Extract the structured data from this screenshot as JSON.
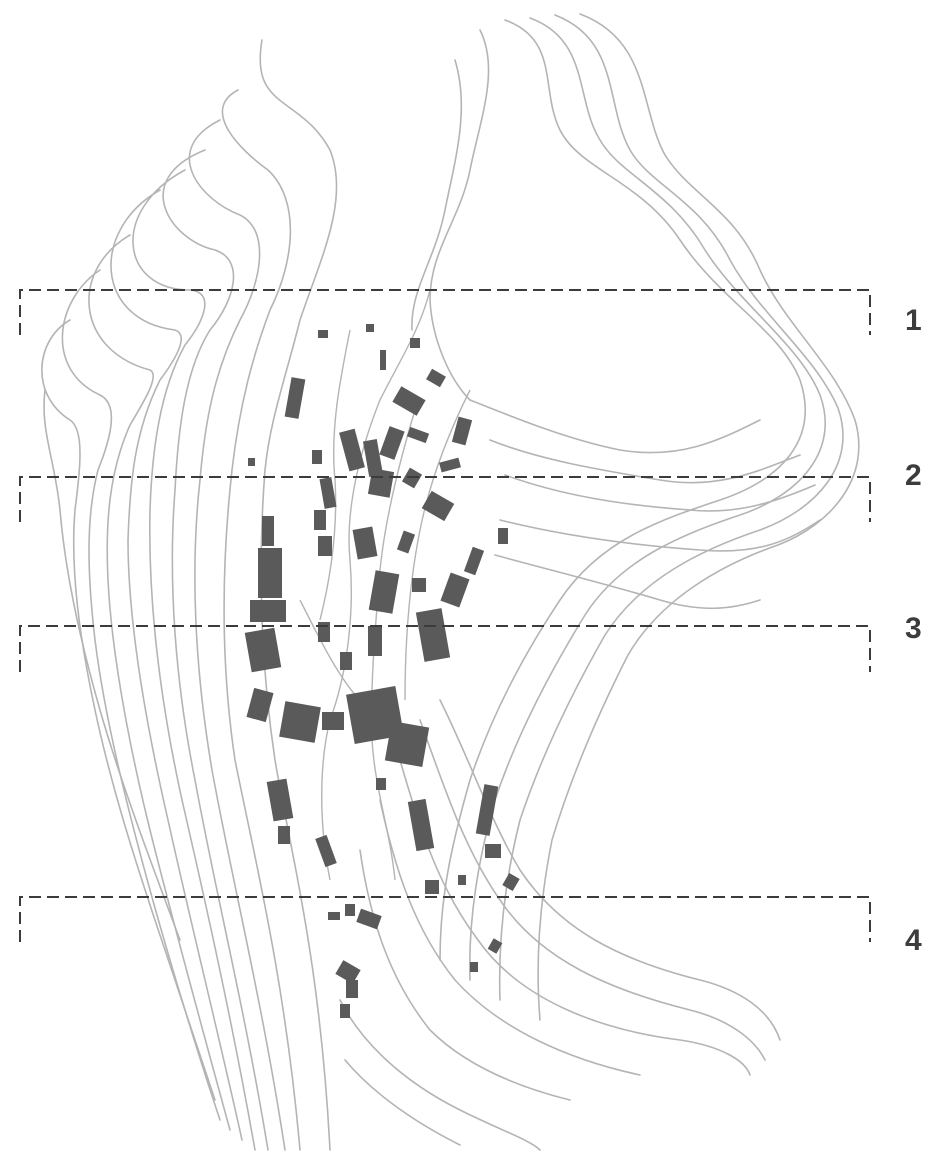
{
  "map": {
    "style": {
      "contour_color": "#b4b4b4",
      "building_color": "#5a5a5a",
      "section_line_color": "#3c3c3c",
      "background": "#ffffff"
    },
    "sections": [
      {
        "label": "1"
      },
      {
        "label": "2"
      },
      {
        "label": "3"
      },
      {
        "label": "4"
      }
    ]
  }
}
